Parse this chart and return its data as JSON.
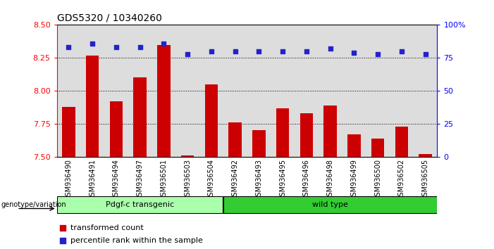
{
  "title": "GDS5320 / 10340260",
  "samples": [
    "GSM936490",
    "GSM936491",
    "GSM936494",
    "GSM936497",
    "GSM936501",
    "GSM936503",
    "GSM936504",
    "GSM936492",
    "GSM936493",
    "GSM936495",
    "GSM936496",
    "GSM936498",
    "GSM936499",
    "GSM936500",
    "GSM936502",
    "GSM936505"
  ],
  "bar_values": [
    7.88,
    8.27,
    7.92,
    8.1,
    8.35,
    7.51,
    8.05,
    7.76,
    7.7,
    7.87,
    7.83,
    7.89,
    7.67,
    7.64,
    7.73,
    7.52
  ],
  "percentile_values": [
    83,
    86,
    83,
    83,
    86,
    78,
    80,
    80,
    80,
    80,
    80,
    82,
    79,
    78,
    80,
    78
  ],
  "ylim_left": [
    7.5,
    8.5
  ],
  "ylim_right": [
    0,
    100
  ],
  "yticks_left": [
    7.5,
    7.75,
    8.0,
    8.25,
    8.5
  ],
  "yticks_right": [
    0,
    25,
    50,
    75,
    100
  ],
  "ytick_labels_right": [
    "0",
    "25",
    "50",
    "75",
    "100%"
  ],
  "bar_color": "#cc0000",
  "scatter_color": "#2222cc",
  "group1_label": "Pdgf-c transgenic",
  "group2_label": "wild type",
  "group1_color": "#aaffaa",
  "group2_color": "#33cc33",
  "group1_count": 7,
  "group2_count": 9,
  "genotype_label": "genotype/variation",
  "legend_bar_label": "transformed count",
  "legend_scatter_label": "percentile rank within the sample",
  "background_color": "#ffffff",
  "plot_bg_color": "#dddddd",
  "title_fontsize": 10
}
